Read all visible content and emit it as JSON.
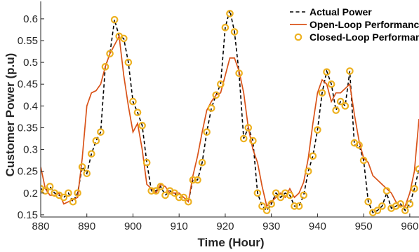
{
  "chart_data": {
    "type": "line",
    "xlabel": "Time (Hour)",
    "ylabel": "Customer Power (p.u)",
    "xlim": [
      880,
      962
    ],
    "ylim": [
      0.145,
      0.64
    ],
    "xticks": [
      880,
      890,
      900,
      910,
      920,
      930,
      940,
      950,
      960
    ],
    "yticks": [
      0.15,
      0.2,
      0.25,
      0.3,
      0.35,
      0.4,
      0.45,
      0.5,
      0.55,
      0.6
    ],
    "ytick_labels": [
      "0.15",
      "0.2",
      "0.25",
      "0.3",
      "0.35",
      "0.4",
      "0.45",
      "0.5",
      "0.55",
      "0.6"
    ],
    "grid": false,
    "legend_position": "top-right",
    "series": [
      {
        "name": "Actual Power",
        "style": "dashed",
        "color": "#000000",
        "x": [
          880,
          881,
          882,
          883,
          884,
          885,
          886,
          887,
          888,
          889,
          890,
          891,
          892,
          893,
          894,
          895,
          896,
          897,
          898,
          899,
          900,
          901,
          902,
          903,
          904,
          905,
          906,
          907,
          908,
          909,
          910,
          911,
          912,
          913,
          914,
          915,
          916,
          917,
          918,
          919,
          920,
          921,
          922,
          923,
          924,
          925,
          926,
          927,
          928,
          929,
          930,
          931,
          932,
          933,
          934,
          935,
          936,
          937,
          938,
          939,
          940,
          941,
          942,
          943,
          944,
          945,
          946,
          947,
          948,
          949,
          950,
          951,
          952,
          953,
          954,
          955,
          956,
          957,
          958,
          959,
          960,
          961,
          962
        ],
        "y": [
          0.21,
          0.205,
          0.215,
          0.2,
          0.195,
          0.19,
          0.2,
          0.18,
          0.2,
          0.26,
          0.245,
          0.29,
          0.32,
          0.34,
          0.49,
          0.52,
          0.598,
          0.56,
          0.555,
          0.5,
          0.41,
          0.385,
          0.355,
          0.27,
          0.205,
          0.205,
          0.215,
          0.195,
          0.205,
          0.2,
          0.19,
          0.19,
          0.18,
          0.23,
          0.23,
          0.27,
          0.34,
          0.395,
          0.425,
          0.45,
          0.58,
          0.62,
          0.57,
          0.475,
          0.325,
          0.35,
          0.32,
          0.2,
          0.17,
          0.16,
          0.175,
          0.2,
          0.19,
          0.2,
          0.195,
          0.17,
          0.17,
          0.195,
          0.25,
          0.285,
          0.345,
          0.43,
          0.48,
          0.45,
          0.39,
          0.41,
          0.4,
          0.48,
          0.31,
          0.31,
          0.275,
          0.18,
          0.155,
          0.16,
          0.17,
          0.2,
          0.165,
          0.17,
          0.175,
          0.16,
          0.175,
          0.21,
          0.255
        ]
      },
      {
        "name": "Open-Loop Performance",
        "style": "solid",
        "color": "#d95319",
        "x": [
          880,
          881,
          882,
          883,
          884,
          885,
          886,
          887,
          888,
          889,
          890,
          891,
          892,
          893,
          894,
          895,
          896,
          897,
          898,
          899,
          900,
          901,
          902,
          903,
          904,
          905,
          906,
          907,
          908,
          909,
          910,
          911,
          912,
          913,
          914,
          915,
          916,
          917,
          918,
          919,
          920,
          921,
          922,
          923,
          924,
          925,
          926,
          927,
          928,
          929,
          930,
          931,
          932,
          933,
          934,
          935,
          936,
          937,
          938,
          939,
          940,
          941,
          942,
          943,
          944,
          945,
          946,
          947,
          948,
          949,
          950,
          951,
          952,
          953,
          954,
          955,
          956,
          957,
          958,
          959,
          960,
          961,
          962
        ],
        "y": [
          0.26,
          0.21,
          0.195,
          0.195,
          0.2,
          0.175,
          0.18,
          0.185,
          0.19,
          0.28,
          0.4,
          0.43,
          0.435,
          0.45,
          0.49,
          0.52,
          0.54,
          0.56,
          0.47,
          0.4,
          0.34,
          0.36,
          0.3,
          0.22,
          0.21,
          0.2,
          0.22,
          0.215,
          0.2,
          0.2,
          0.2,
          0.19,
          0.18,
          0.24,
          0.285,
          0.34,
          0.39,
          0.41,
          0.425,
          0.43,
          0.47,
          0.51,
          0.51,
          0.48,
          0.43,
          0.35,
          0.3,
          0.27,
          0.215,
          0.17,
          0.18,
          0.19,
          0.2,
          0.19,
          0.21,
          0.19,
          0.2,
          0.225,
          0.28,
          0.36,
          0.43,
          0.46,
          0.45,
          0.41,
          0.43,
          0.43,
          0.44,
          0.45,
          0.38,
          0.32,
          0.28,
          0.27,
          0.24,
          0.23,
          0.22,
          0.21,
          0.2,
          0.18,
          0.17,
          0.17,
          0.2,
          0.25,
          0.37
        ]
      },
      {
        "name": "Closed-Loop Performance",
        "style": "markers",
        "color": "#edb120",
        "x": [
          880,
          881,
          882,
          883,
          884,
          885,
          886,
          887,
          888,
          889,
          890,
          891,
          892,
          893,
          894,
          895,
          896,
          897,
          898,
          899,
          900,
          901,
          902,
          903,
          904,
          905,
          906,
          907,
          908,
          909,
          910,
          911,
          912,
          913,
          914,
          915,
          916,
          917,
          918,
          919,
          920,
          921,
          922,
          923,
          924,
          925,
          926,
          927,
          928,
          929,
          930,
          931,
          932,
          933,
          934,
          935,
          936,
          937,
          938,
          939,
          940,
          941,
          942,
          943,
          944,
          945,
          946,
          947,
          948,
          949,
          950,
          951,
          952,
          953,
          954,
          955,
          956,
          957,
          958,
          959,
          960,
          961,
          962
        ],
        "y": [
          0.21,
          0.205,
          0.215,
          0.2,
          0.195,
          0.19,
          0.2,
          0.18,
          0.2,
          0.26,
          0.245,
          0.29,
          0.32,
          0.34,
          0.49,
          0.52,
          0.598,
          0.56,
          0.555,
          0.5,
          0.41,
          0.385,
          0.355,
          0.27,
          0.205,
          0.205,
          0.215,
          0.195,
          0.205,
          0.2,
          0.19,
          0.19,
          0.18,
          0.23,
          0.23,
          0.27,
          0.34,
          0.395,
          0.425,
          0.45,
          0.58,
          0.612,
          0.57,
          0.475,
          0.325,
          0.35,
          0.32,
          0.2,
          0.17,
          0.16,
          0.175,
          0.2,
          0.19,
          0.2,
          0.195,
          0.17,
          0.17,
          0.195,
          0.25,
          0.285,
          0.345,
          0.43,
          0.478,
          0.45,
          0.39,
          0.41,
          0.4,
          0.48,
          0.315,
          0.31,
          0.275,
          0.18,
          0.155,
          0.16,
          0.17,
          0.205,
          0.165,
          0.17,
          0.175,
          0.16,
          0.175,
          0.21,
          0.255
        ]
      }
    ]
  }
}
